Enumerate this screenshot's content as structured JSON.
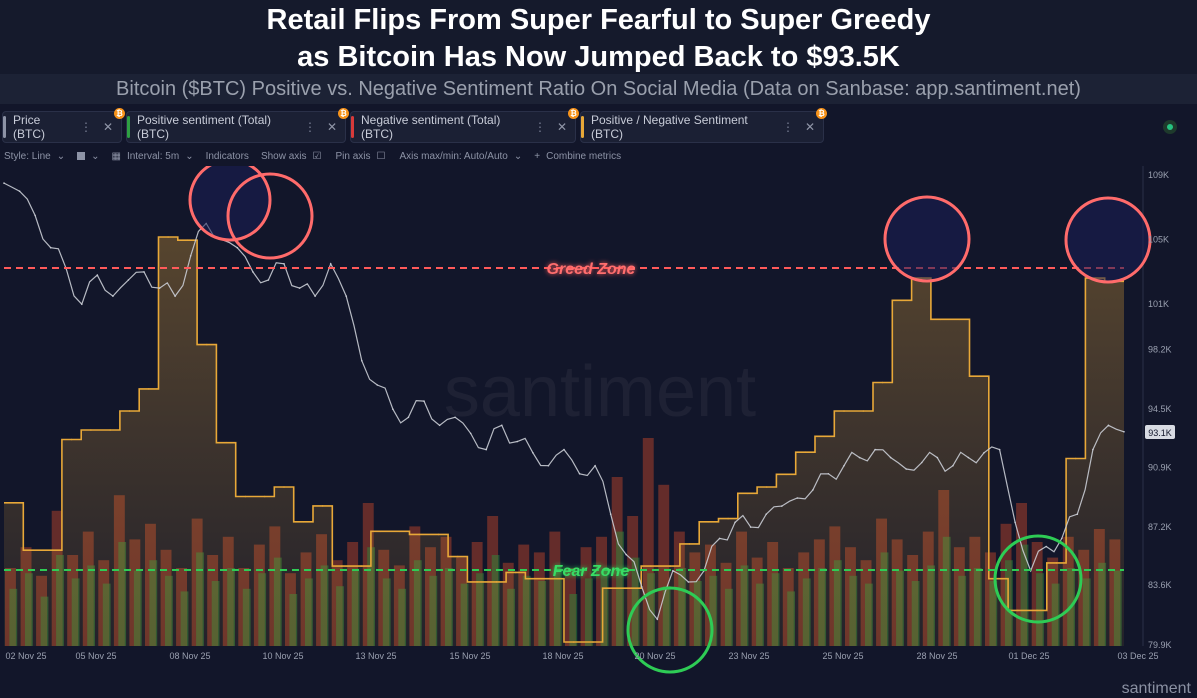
{
  "title_line1": "Retail Flips From Super Fearful to Super Greedy",
  "title_line2": "as Bitcoin Has Now Jumped Back to $93.5K",
  "subtitle": "Bitcoin ($BTC) Positive vs. Negative Sentiment Ratio On Social Media (Data on Sanbase: app.santiment.net)",
  "metric_tabs": [
    {
      "label": "Price (BTC)",
      "color": "#8d93a6"
    },
    {
      "label": "Positive sentiment (Total) (BTC)",
      "color": "#2ea043"
    },
    {
      "label": "Negative sentiment (Total) (BTC)",
      "color": "#d73a3a"
    },
    {
      "label": "Positive / Negative Sentiment (BTC)",
      "color": "#e8a838"
    }
  ],
  "toolbar": {
    "style": "Style: Line",
    "interval": "Interval: 5m",
    "indicators": "Indicators",
    "show_axis": "Show axis",
    "pin_axis": "Pin axis",
    "axis_minmax": "Axis max/min: Auto/Auto",
    "combine": "Combine metrics"
  },
  "watermark": "santiment",
  "brand": "santiment",
  "chart_data": {
    "type": "line",
    "x_labels": [
      "02 Nov 25",
      "05 Nov 25",
      "08 Nov 25",
      "10 Nov 25",
      "13 Nov 25",
      "15 Nov 25",
      "18 Nov 25",
      "20 Nov 25",
      "23 Nov 25",
      "25 Nov 25",
      "28 Nov 25",
      "01 Dec 25",
      "03 Dec 25"
    ],
    "y_right_ticks": [
      "109K",
      "105K",
      "101K",
      "98.2K",
      "94.5K",
      "90.9K",
      "87.2K",
      "83.6K",
      "79.9K"
    ],
    "current_price_label": "93.1K",
    "zones": [
      {
        "label": "Greed Zone",
        "color": "#ff5a5a"
      },
      {
        "label": "Fear Zone",
        "color": "#2ecc55"
      }
    ],
    "series": [
      {
        "name": "Price (BTC)",
        "color": "#c9ccd4",
        "values": [
          108.5,
          108.0,
          106.5,
          104.5,
          103.2,
          101.0,
          102.8,
          101.5,
          102.5,
          103.0,
          102.0,
          101.5,
          104.0,
          106.0,
          105.0,
          104.5,
          103.0,
          102.5,
          103.5,
          102.0,
          101.5,
          103.5,
          101.5,
          97.5,
          96.0,
          94.5,
          94.0,
          95.0,
          93.5,
          94.0,
          93.0,
          92.0,
          93.5,
          92.5,
          91.8,
          91.0,
          92.0,
          90.5,
          91.0,
          88.0,
          85.5,
          83.5,
          81.5,
          84.5,
          83.8,
          84.5,
          86.5,
          87.5,
          87.2,
          88.0,
          88.5,
          89.0,
          89.5,
          90.5,
          91.0,
          91.5,
          92.0,
          91.5,
          90.8,
          91.2,
          91.5,
          91.0,
          91.5,
          91.8,
          92.0,
          87.5,
          84.5,
          86.0,
          86.5,
          88.0,
          92.0,
          93.5,
          93.1
        ]
      },
      {
        "name": "Positive / Negative Sentiment (BTC)",
        "color": "#e8a838",
        "values": [
          2.3,
          1.55,
          1.55,
          3.3,
          3.45,
          3.45,
          3.75,
          4.1,
          6.5,
          6.45,
          4.8,
          3.25,
          2.4,
          2.4,
          2.55,
          2.0,
          2.25,
          1.3,
          1.3,
          1.85,
          1.85,
          1.8,
          1.8,
          1.45,
          1.05,
          1.05,
          1.2,
          1.1,
          1.1,
          0.1,
          0.1,
          0.95,
          0.95,
          1.3,
          1.3,
          1.65,
          2.0,
          2.05,
          2.45,
          2.55,
          2.75,
          3.1,
          3.35,
          3.75,
          3.75,
          4.2,
          5.5,
          5.85,
          5.2,
          5.2,
          4.3,
          1.1,
          0.6,
          0.6,
          1.35,
          3.0,
          5.85,
          5.8
        ]
      },
      {
        "name": "Positive sentiment (Total) (BTC)",
        "color": "#2f8a3a",
        "values": [
          22,
          28,
          19,
          35,
          26,
          31,
          24,
          40,
          29,
          33,
          27,
          21,
          36,
          25,
          30,
          22,
          28,
          34,
          20,
          26,
          31,
          23,
          29,
          38,
          26,
          22,
          33,
          27,
          30,
          24,
          28,
          35,
          22,
          27,
          25,
          31,
          20,
          26,
          29,
          44,
          34,
          28,
          23,
          30,
          25,
          27,
          22,
          31,
          24,
          28,
          21,
          26,
          30,
          33,
          27,
          24,
          36,
          29,
          25,
          31,
          42,
          27,
          30,
          25,
          33,
          39,
          28,
          24,
          30,
          26,
          32,
          29
        ]
      },
      {
        "name": "Negative sentiment (Total) (BTC)",
        "color": "#b03a2a",
        "values": [
          30,
          38,
          27,
          52,
          35,
          44,
          33,
          58,
          41,
          47,
          37,
          30,
          49,
          35,
          42,
          30,
          39,
          46,
          28,
          36,
          43,
          33,
          40,
          55,
          37,
          31,
          46,
          38,
          42,
          34,
          40,
          50,
          32,
          39,
          36,
          44,
          30,
          38,
          42,
          65,
          50,
          80,
          62,
          44,
          36,
          39,
          32,
          44,
          34,
          40,
          30,
          36,
          41,
          46,
          38,
          33,
          49,
          41,
          35,
          44,
          60,
          38,
          42,
          36,
          47,
          55,
          40,
          34,
          42,
          37,
          45,
          41
        ]
      }
    ]
  }
}
